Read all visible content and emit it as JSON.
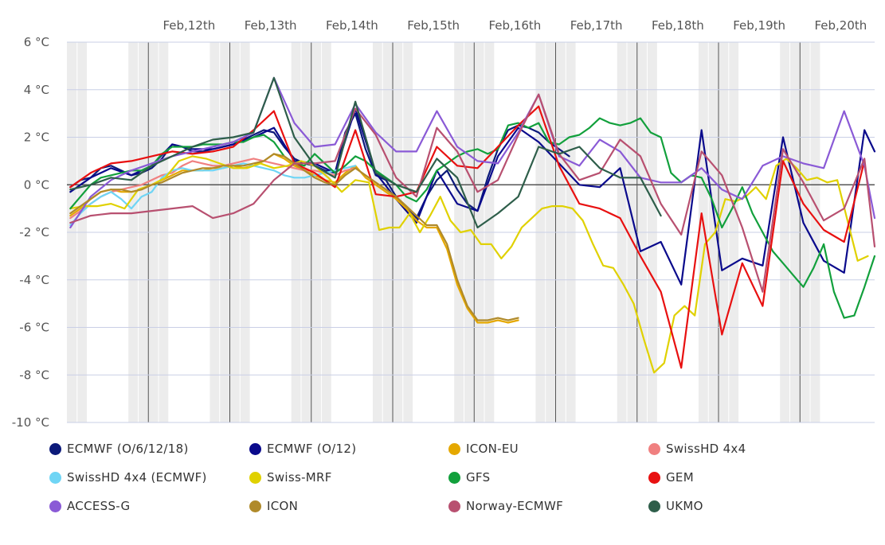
{
  "chart_data": {
    "type": "line",
    "x_unit": "hours since Feb,11th 00:00 (tick labels at noon)",
    "xlim": [
      0,
      238
    ],
    "x_tick_labels": [
      "Feb,12th",
      "Feb,13th",
      "Feb,14th",
      "Feb,15th",
      "Feb,16th",
      "Feb,17th",
      "Feb,18th",
      "Feb,19th",
      "Feb,20th"
    ],
    "x_tick_values": [
      36,
      60,
      84,
      108,
      132,
      156,
      180,
      204,
      228
    ],
    "y_tick_labels": [
      "6 °C",
      "4 °C",
      "2 °C",
      "0 °C",
      "-2 °C",
      "-4 °C",
      "-6 °C",
      "-8 °C",
      "-10 °C"
    ],
    "y_tick_values": [
      6,
      4,
      2,
      0,
      -2,
      -4,
      -6,
      -8,
      -10
    ],
    "ylim": [
      -10,
      6
    ],
    "ylabel": "",
    "xlabel": "",
    "grid": true,
    "legend_position": "bottom",
    "series": [
      {
        "name": "ECMWF (O/6/12/18)",
        "color": "#0c1a7a",
        "x": [
          1,
          4,
          7,
          10,
          13,
          16,
          19,
          22,
          25,
          28,
          31,
          34,
          37,
          40,
          43,
          46,
          49,
          52,
          55,
          58,
          61,
          64,
          67,
          70,
          73,
          76,
          79,
          82,
          85,
          88,
          91,
          94,
          97,
          100,
          103,
          106,
          109,
          112,
          115,
          118,
          121,
          124,
          127,
          130,
          133,
          136,
          139,
          142,
          145,
          148
        ],
        "y": [
          -0.1,
          0.2,
          0.3,
          0.7,
          0.8,
          0.6,
          0.4,
          0.5,
          0.7,
          1.1,
          1.7,
          1.6,
          1.4,
          1.4,
          1.5,
          1.6,
          1.7,
          1.9,
          2.1,
          2.3,
          2.2,
          1.6,
          1.1,
          0.9,
          0.8,
          0.6,
          0.5,
          2.2,
          3.0,
          1.5,
          0.4,
          0.2,
          -0.5,
          -1.0,
          -1.4,
          -0.5,
          0.2,
          0.6,
          -0.2,
          -0.8,
          -1.1,
          0.3,
          1.5,
          2.3,
          2.5,
          2.4,
          2.2,
          1.8,
          1.5,
          1.2
        ]
      },
      {
        "name": "ECMWF (O/12)",
        "color": "#0a0a8c",
        "x": [
          1,
          7,
          13,
          19,
          25,
          31,
          37,
          43,
          49,
          55,
          61,
          67,
          73,
          79,
          85,
          91,
          97,
          103,
          109,
          115,
          121,
          127,
          133,
          139,
          145,
          151,
          157,
          163,
          169,
          175,
          181,
          187,
          193,
          199,
          205,
          211,
          217,
          223,
          229,
          235,
          241
        ],
        "y": [
          -0.3,
          0.3,
          0.7,
          0.4,
          0.8,
          1.7,
          1.5,
          1.5,
          1.7,
          2.0,
          2.4,
          1.0,
          0.9,
          0.5,
          3.2,
          0.5,
          -0.6,
          -1.6,
          0.6,
          -0.8,
          -1.1,
          1.2,
          2.4,
          1.8,
          0.9,
          0.0,
          -0.1,
          0.7,
          -2.8,
          -2.4,
          -4.2,
          2.3,
          -3.6,
          -3.1,
          -3.4,
          2.0,
          -1.6,
          -3.2,
          -3.7,
          2.3,
          1.4
        ]
      },
      {
        "name": "ICON-EU",
        "color": "#e5a800",
        "x": [
          1,
          4,
          7,
          10,
          13,
          16,
          19,
          22,
          25,
          28,
          31,
          34,
          37,
          40,
          43,
          46,
          49,
          52,
          55,
          58,
          61,
          64,
          67,
          70,
          73,
          76,
          79,
          82,
          85,
          88,
          91,
          94,
          97,
          100,
          103,
          106,
          109,
          112,
          115,
          118,
          121,
          124,
          127,
          130,
          133
        ],
        "y": [
          -1.3,
          -1.0,
          -0.6,
          -0.3,
          -0.2,
          -0.3,
          -0.3,
          -0.2,
          0.0,
          0.2,
          0.4,
          0.6,
          0.6,
          0.6,
          0.7,
          0.7,
          0.8,
          0.7,
          0.8,
          1.0,
          1.3,
          1.1,
          0.8,
          0.6,
          0.4,
          0.2,
          0.1,
          0.5,
          0.8,
          0.3,
          0.0,
          -0.3,
          -0.6,
          -1.0,
          -1.5,
          -1.8,
          -1.8,
          -2.7,
          -4.2,
          -5.2,
          -5.8,
          -5.8,
          -5.7,
          -5.8,
          -5.7
        ]
      },
      {
        "name": "SwissHD 4x4",
        "color": "#f08080",
        "x": [
          1,
          4,
          7,
          10,
          13,
          16,
          19,
          22,
          25,
          28,
          31,
          34,
          37,
          40,
          43,
          46,
          49,
          52,
          55,
          58,
          61,
          64,
          67,
          70,
          73,
          76,
          79,
          82,
          85
        ],
        "y": [
          -1.4,
          -1.1,
          -0.8,
          -0.5,
          -0.3,
          -0.2,
          -0.1,
          0.0,
          0.2,
          0.4,
          0.5,
          0.8,
          1.0,
          0.9,
          0.8,
          0.8,
          0.9,
          1.0,
          1.1,
          1.0,
          0.9,
          0.8,
          0.7,
          0.6,
          0.6,
          0.5,
          0.4,
          0.6,
          0.7
        ]
      },
      {
        "name": "SwissHD 4x4 (ECMWF)",
        "color": "#6fd5f5",
        "x": [
          1,
          4,
          7,
          10,
          13,
          16,
          19,
          22,
          25,
          28,
          31,
          34,
          37,
          40,
          43,
          46,
          49,
          52,
          55,
          58,
          61,
          64,
          67,
          70,
          73,
          76,
          79,
          82,
          85
        ],
        "y": [
          -1.7,
          -1.2,
          -0.8,
          -0.5,
          -0.3,
          -0.6,
          -1.0,
          -0.5,
          -0.3,
          0.3,
          0.6,
          0.7,
          0.6,
          0.6,
          0.6,
          0.7,
          0.8,
          0.9,
          0.8,
          0.7,
          0.6,
          0.4,
          0.3,
          0.3,
          0.4,
          0.5,
          0.6,
          0.7,
          0.8
        ]
      },
      {
        "name": "Swiss-MRF",
        "color": "#e0d100",
        "x": [
          1,
          5,
          9,
          13,
          17,
          21,
          25,
          29,
          33,
          37,
          41,
          45,
          49,
          53,
          57,
          61,
          65,
          69,
          73,
          77,
          81,
          85,
          89,
          92,
          95,
          98,
          101,
          104,
          107,
          110,
          113,
          116,
          119,
          122,
          125,
          128,
          131,
          134,
          137,
          140,
          143,
          146,
          149,
          152,
          155,
          158,
          161,
          164,
          167,
          170,
          173,
          176,
          179,
          182,
          185,
          188,
          191,
          194,
          197,
          200,
          203,
          206,
          209,
          212,
          215,
          218,
          221,
          224,
          227,
          230,
          233,
          236
        ],
        "y": [
          -1.0,
          -0.9,
          -0.9,
          -0.8,
          -1.0,
          -0.2,
          0.0,
          0.3,
          1.0,
          1.2,
          1.1,
          0.9,
          0.7,
          0.7,
          0.9,
          0.7,
          0.8,
          1.0,
          0.8,
          0.3,
          -0.3,
          0.2,
          0.1,
          -1.9,
          -1.8,
          -1.8,
          -1.2,
          -2.0,
          -1.3,
          -0.5,
          -1.5,
          -2.0,
          -1.9,
          -2.5,
          -2.5,
          -3.1,
          -2.6,
          -1.8,
          -1.4,
          -1.0,
          -0.9,
          -0.9,
          -1.0,
          -1.5,
          -2.5,
          -3.4,
          -3.5,
          -4.2,
          -5.0,
          -6.5,
          -7.9,
          -7.5,
          -5.5,
          -5.1,
          -5.5,
          -2.5,
          -2.0,
          -0.6,
          -0.7,
          -0.5,
          -0.1,
          -0.6,
          0.8,
          1.1,
          0.7,
          0.2,
          0.3,
          0.1,
          0.2,
          -1.5,
          -3.2,
          -3.0
        ]
      },
      {
        "name": "GFS",
        "color": "#12a03c",
        "x": [
          1,
          4,
          7,
          10,
          13,
          16,
          19,
          22,
          25,
          28,
          31,
          34,
          37,
          40,
          43,
          46,
          49,
          52,
          55,
          58,
          61,
          64,
          67,
          70,
          73,
          76,
          79,
          82,
          85,
          88,
          91,
          94,
          97,
          100,
          103,
          106,
          109,
          112,
          115,
          118,
          121,
          124,
          127,
          130,
          133,
          136,
          139,
          142,
          145,
          148,
          151,
          154,
          157,
          160,
          163,
          166,
          169,
          172,
          175,
          178,
          181,
          184,
          187,
          190,
          193,
          196,
          199,
          202,
          205,
          208,
          211,
          214,
          217,
          220,
          223,
          226,
          229,
          232,
          235,
          238
        ],
        "y": [
          -1.0,
          -0.5,
          0.0,
          0.3,
          0.4,
          0.5,
          0.6,
          0.6,
          0.8,
          1.3,
          1.6,
          1.6,
          1.6,
          1.7,
          1.7,
          1.7,
          1.8,
          1.8,
          2.0,
          2.1,
          1.8,
          1.2,
          0.9,
          0.8,
          1.3,
          0.9,
          0.5,
          0.8,
          1.2,
          1.0,
          0.6,
          0.3,
          0.0,
          -0.5,
          -0.7,
          -0.2,
          0.6,
          0.9,
          1.2,
          1.4,
          1.5,
          1.3,
          1.5,
          2.5,
          2.6,
          2.4,
          2.6,
          1.8,
          1.7,
          2.0,
          2.1,
          2.4,
          2.8,
          2.6,
          2.5,
          2.6,
          2.8,
          2.2,
          2.0,
          0.5,
          0.1,
          0.4,
          0.3,
          -0.6,
          -1.8,
          -1.0,
          -0.1,
          -1.2,
          -2.0,
          -2.8,
          -3.3,
          -3.8,
          -4.3,
          -3.5,
          -2.5,
          -4.5,
          -5.6,
          -5.5,
          -4.3,
          -3.0
        ]
      },
      {
        "name": "GEM",
        "color": "#e81010",
        "x": [
          1,
          7,
          13,
          19,
          25,
          31,
          37,
          43,
          49,
          55,
          61,
          67,
          73,
          79,
          85,
          91,
          97,
          103,
          109,
          115,
          121,
          127,
          133,
          139,
          145,
          151,
          157,
          163,
          169,
          175,
          181,
          187,
          193,
          199,
          205,
          211,
          217,
          223,
          229,
          235
        ],
        "y": [
          -0.1,
          0.5,
          0.9,
          1.0,
          1.2,
          1.4,
          1.3,
          1.4,
          1.6,
          2.3,
          3.1,
          0.9,
          0.5,
          -0.1,
          2.3,
          -0.4,
          -0.5,
          -0.3,
          1.6,
          0.8,
          0.7,
          1.6,
          2.5,
          3.3,
          0.8,
          -0.8,
          -1.0,
          -1.4,
          -3.0,
          -4.5,
          -7.7,
          -1.2,
          -6.3,
          -3.3,
          -5.1,
          1.0,
          -0.8,
          -1.9,
          -2.4,
          1.0
        ]
      },
      {
        "name": "ACCESS-G",
        "color": "#8a5ad6",
        "x": [
          1,
          7,
          13,
          19,
          25,
          31,
          37,
          43,
          49,
          55,
          61,
          67,
          73,
          79,
          85,
          91,
          97,
          103,
          109,
          115,
          121,
          127,
          133,
          139,
          145,
          151,
          157,
          163,
          169,
          175,
          181,
          187,
          193,
          199,
          205,
          211,
          217,
          223,
          229,
          235,
          241
        ],
        "y": [
          -1.8,
          -0.5,
          0.2,
          0.6,
          0.9,
          1.2,
          1.4,
          1.6,
          1.8,
          2.2,
          4.5,
          2.6,
          1.6,
          1.7,
          3.4,
          2.2,
          1.4,
          1.4,
          3.1,
          1.6,
          1.0,
          0.9,
          2.2,
          3.8,
          1.2,
          0.8,
          1.9,
          1.4,
          0.3,
          0.1,
          0.1,
          0.7,
          -0.2,
          -0.6,
          0.8,
          1.2,
          0.9,
          0.7,
          3.1,
          0.8,
          -1.4
        ]
      },
      {
        "name": "ICON",
        "color": "#b08a2a",
        "x": [
          1,
          4,
          7,
          10,
          13,
          16,
          19,
          22,
          25,
          28,
          31,
          34,
          37,
          40,
          43,
          46,
          49,
          52,
          55,
          58,
          61,
          64,
          67,
          70,
          73,
          76,
          79,
          82,
          85,
          88,
          91,
          94,
          97,
          100,
          103,
          106,
          109,
          112,
          115,
          118,
          121,
          124,
          127,
          130,
          133
        ],
        "y": [
          -1.2,
          -0.9,
          -0.6,
          -0.3,
          -0.2,
          -0.2,
          -0.3,
          -0.2,
          0.0,
          0.1,
          0.3,
          0.5,
          0.6,
          0.7,
          0.7,
          0.8,
          0.8,
          0.8,
          0.9,
          1.0,
          1.3,
          1.2,
          0.9,
          0.6,
          0.3,
          0.1,
          0.0,
          0.4,
          0.7,
          0.4,
          0.1,
          -0.2,
          -0.5,
          -0.9,
          -1.3,
          -1.7,
          -1.7,
          -2.5,
          -4.0,
          -5.1,
          -5.7,
          -5.7,
          -5.6,
          -5.7,
          -5.6
        ]
      },
      {
        "name": "Norway-ECMWF",
        "color": "#b85070",
        "x": [
          1,
          7,
          13,
          19,
          25,
          31,
          37,
          43,
          49,
          55,
          61,
          67,
          73,
          79,
          85,
          91,
          97,
          103,
          109,
          115,
          121,
          127,
          133,
          139,
          145,
          151,
          157,
          163,
          169,
          175,
          181,
          187,
          193,
          199,
          205,
          211,
          217,
          223,
          229,
          235,
          241
        ],
        "y": [
          -1.6,
          -1.3,
          -1.2,
          -1.2,
          -1.1,
          -1.0,
          -0.9,
          -1.4,
          -1.2,
          -0.8,
          0.2,
          0.9,
          0.9,
          1.0,
          3.2,
          2.1,
          0.3,
          -0.5,
          2.4,
          1.4,
          -0.3,
          0.2,
          2.1,
          3.8,
          1.3,
          0.2,
          0.5,
          1.9,
          1.2,
          -0.8,
          -2.1,
          1.4,
          0.4,
          -1.8,
          -4.5,
          1.5,
          0.1,
          -1.5,
          -1.0,
          1.1,
          -2.6
        ]
      },
      {
        "name": "UKMO",
        "color": "#2e5e4a",
        "x": [
          1,
          7,
          13,
          19,
          25,
          31,
          37,
          43,
          49,
          55,
          61,
          67,
          73,
          79,
          85,
          91,
          97,
          103,
          109,
          115,
          121,
          127,
          133,
          139,
          145,
          151,
          157,
          163,
          169,
          175
        ],
        "y": [
          -0.2,
          0.0,
          0.3,
          0.2,
          0.8,
          1.2,
          1.6,
          1.9,
          2.0,
          2.2,
          4.5,
          2.0,
          0.8,
          0.3,
          3.5,
          0.5,
          0.0,
          -0.3,
          1.1,
          0.3,
          -1.8,
          -1.2,
          -0.5,
          1.6,
          1.3,
          1.6,
          0.7,
          0.3,
          0.3,
          -1.3
        ]
      }
    ]
  }
}
